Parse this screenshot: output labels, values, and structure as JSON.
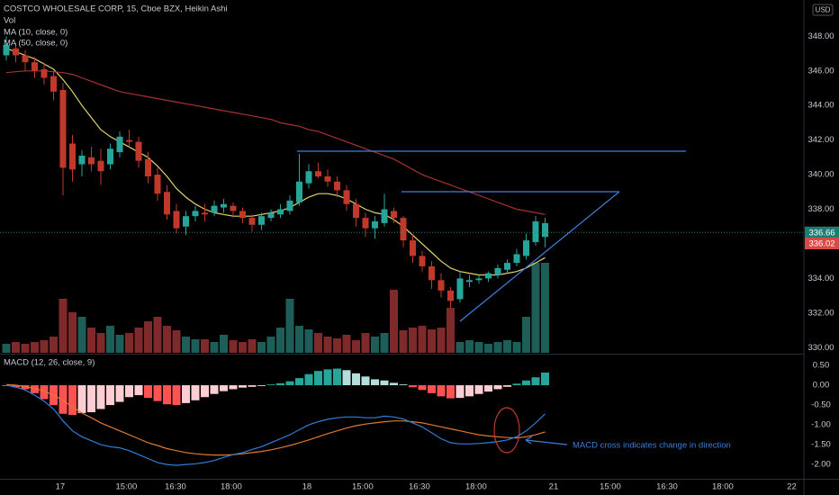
{
  "chart_data": [
    {
      "type": "candlestick",
      "title": "COSTCO WHOLESALE CORP, 15, Cboe BZX, Heikin Ashi",
      "currency": "USD",
      "open": [
        346.9,
        347.3,
        346.9,
        346.5,
        346.1,
        345.7,
        344.9,
        341.8,
        340.6,
        341.0,
        340.8,
        340.6,
        341.3,
        342.0,
        341.9,
        340.9,
        340.0,
        339.0,
        337.9,
        337.0,
        337.6,
        337.8,
        337.8,
        338.1,
        338.2,
        337.9,
        337.5,
        337.1,
        337.5,
        337.7,
        337.9,
        338.4,
        339.5,
        340.2,
        339.9,
        339.6,
        339.1,
        338.3,
        337.5,
        336.9,
        337.2,
        337.9,
        337.5,
        336.2,
        335.3,
        334.7,
        333.9,
        333.3,
        332.8,
        333.8,
        333.9,
        334.0,
        334.2,
        334.5,
        334.9,
        335.3,
        336.1,
        336.4
      ],
      "high": [
        348.0,
        347.6,
        347.2,
        346.8,
        346.5,
        346.0,
        345.3,
        342.3,
        341.4,
        341.6,
        341.5,
        341.8,
        342.5,
        342.6,
        342.2,
        341.3,
        340.4,
        339.4,
        338.3,
        337.9,
        338.2,
        338.3,
        338.5,
        338.6,
        338.4,
        338.1,
        337.7,
        337.8,
        338.0,
        338.3,
        338.8,
        341.2,
        340.6,
        340.7,
        340.3,
        339.9,
        339.4,
        338.6,
        337.8,
        337.6,
        338.9,
        338.1,
        337.6,
        336.5,
        335.6,
        335.0,
        334.3,
        333.5,
        334.4,
        334.2,
        334.2,
        334.4,
        334.8,
        335.1,
        335.7,
        336.6,
        337.6,
        337.5
      ],
      "low": [
        346.6,
        346.5,
        346.0,
        345.6,
        345.2,
        344.3,
        338.8,
        339.6,
        339.9,
        340.2,
        339.4,
        340.3,
        341.0,
        341.6,
        340.4,
        339.5,
        338.5,
        337.4,
        336.6,
        336.5,
        337.3,
        337.3,
        337.6,
        337.8,
        337.5,
        337.2,
        336.7,
        336.8,
        337.3,
        337.5,
        337.7,
        338.2,
        339.2,
        339.8,
        339.3,
        338.7,
        337.9,
        337.0,
        336.4,
        336.3,
        337.0,
        337.2,
        335.8,
        334.9,
        334.4,
        333.4,
        332.9,
        332.3,
        332.6,
        333.5,
        333.7,
        333.8,
        334.0,
        334.3,
        334.7,
        335.1,
        335.9,
        335.8
      ],
      "close": [
        347.5,
        346.9,
        346.5,
        346.0,
        345.6,
        344.8,
        340.4,
        340.3,
        341.1,
        340.6,
        340.2,
        341.5,
        342.2,
        341.9,
        340.8,
        339.9,
        338.9,
        337.7,
        336.9,
        337.6,
        337.9,
        337.7,
        338.2,
        338.3,
        337.9,
        337.5,
        337.1,
        337.6,
        337.8,
        338.0,
        338.5,
        339.6,
        340.2,
        339.9,
        339.6,
        339.1,
        338.3,
        337.5,
        336.9,
        337.3,
        338.0,
        337.5,
        336.2,
        335.3,
        334.7,
        333.9,
        333.3,
        332.7,
        334.0,
        333.9,
        334.0,
        334.3,
        334.6,
        334.9,
        335.4,
        336.2,
        337.3,
        337.2
      ],
      "up_color": "#26a69a",
      "down_color": "#c0392b",
      "series": [
        {
          "name": "MA (10, close, 0)",
          "color": "#e3d26b",
          "values": [
            347.3,
            347.1,
            346.9,
            346.7,
            346.4,
            346.1,
            345.5,
            344.8,
            344.0,
            343.3,
            342.6,
            342.2,
            341.9,
            341.6,
            341.3,
            341.0,
            340.5,
            339.9,
            339.2,
            338.7,
            338.3,
            338.0,
            337.8,
            337.7,
            337.6,
            337.6,
            337.6,
            337.7,
            337.8,
            337.9,
            338.1,
            338.4,
            338.7,
            338.9,
            338.9,
            338.8,
            338.6,
            338.3,
            338.0,
            337.8,
            337.7,
            337.4,
            337.0,
            336.5,
            336.0,
            335.5,
            335.0,
            334.6,
            334.4,
            334.3,
            334.2,
            334.2,
            334.2,
            334.3,
            334.4,
            334.6,
            334.9,
            335.2
          ]
        },
        {
          "name": "MA (50, close, 0)",
          "color": "#a8322f",
          "values": [
            345.9,
            345.95,
            346.0,
            346.0,
            346.0,
            345.95,
            345.9,
            345.8,
            345.6,
            345.4,
            345.2,
            345.0,
            344.8,
            344.7,
            344.6,
            344.5,
            344.4,
            344.3,
            344.2,
            344.1,
            344.0,
            343.9,
            343.8,
            343.7,
            343.6,
            343.5,
            343.4,
            343.3,
            343.2,
            343.0,
            342.9,
            342.8,
            342.6,
            342.5,
            342.3,
            342.1,
            341.9,
            341.7,
            341.5,
            341.3,
            341.1,
            340.9,
            340.6,
            340.3,
            340.0,
            339.8,
            339.6,
            339.4,
            339.2,
            339.0,
            338.8,
            338.6,
            338.4,
            338.2,
            338.0,
            337.9,
            337.8,
            337.7
          ]
        }
      ],
      "price_labels": [
        {
          "value": 336.66,
          "color": "#1e7d73"
        },
        {
          "value": 336.02,
          "color": "#d84a46"
        }
      ],
      "ylim": [
        329.7,
        350.1
      ],
      "yticks": [
        {
          "value": 348,
          "label": "348.00"
        },
        {
          "value": 346,
          "label": "346.00"
        },
        {
          "value": 344,
          "label": "344.00"
        },
        {
          "value": 342,
          "label": "342.00"
        },
        {
          "value": 340,
          "label": "340.00"
        },
        {
          "value": 338,
          "label": "338.00"
        },
        {
          "value": 334,
          "label": "334.00"
        },
        {
          "value": 332,
          "label": "332.00"
        },
        {
          "value": 330,
          "label": "330.00"
        }
      ],
      "xlim": [
        -0.667,
        84.38
      ],
      "xticks": [
        {
          "value": 5.7,
          "label": "17"
        },
        {
          "value": 12.7,
          "label": "15:00"
        },
        {
          "value": 17.9,
          "label": "16:30"
        },
        {
          "value": 23.8,
          "label": "18:00"
        },
        {
          "value": 31.8,
          "label": "18"
        },
        {
          "value": 37.7,
          "label": "15:00"
        },
        {
          "value": 43.7,
          "label": "16:30"
        },
        {
          "value": 49.7,
          "label": "18:00"
        },
        {
          "value": 57.9,
          "label": "21"
        },
        {
          "value": 63.9,
          "label": "15:00"
        },
        {
          "value": 69.9,
          "label": "16:30"
        },
        {
          "value": 75.8,
          "label": "18:00"
        },
        {
          "value": 83.1,
          "label": "22"
        }
      ]
    },
    {
      "type": "bar",
      "title": "Vol",
      "values": [
        10,
        12,
        10,
        12,
        14,
        18,
        60,
        45,
        40,
        28,
        22,
        30,
        20,
        22,
        28,
        35,
        40,
        30,
        25,
        18,
        15,
        15,
        12,
        20,
        14,
        12,
        15,
        12,
        18,
        28,
        60,
        30,
        26,
        22,
        18,
        16,
        20,
        14,
        22,
        18,
        22,
        70,
        25,
        28,
        30,
        26,
        28,
        50,
        12,
        14,
        12,
        10,
        12,
        14,
        12,
        40,
        100,
        100
      ],
      "up_color": "#1d5f58",
      "down_color": "#7e2a2a",
      "ylim": [
        0,
        110
      ]
    },
    {
      "type": "macd",
      "title": "MACD (12, 26, close, 9)",
      "histogram": [
        -0.02,
        -0.05,
        -0.1,
        -0.2,
        -0.35,
        -0.5,
        -0.72,
        -0.75,
        -0.7,
        -0.68,
        -0.6,
        -0.5,
        -0.42,
        -0.3,
        -0.25,
        -0.32,
        -0.4,
        -0.48,
        -0.5,
        -0.45,
        -0.38,
        -0.3,
        -0.22,
        -0.15,
        -0.1,
        -0.06,
        -0.04,
        -0.02,
        0.02,
        0.05,
        0.1,
        0.18,
        0.28,
        0.36,
        0.4,
        0.42,
        0.38,
        0.3,
        0.22,
        0.15,
        0.12,
        0.06,
        0.02,
        -0.05,
        -0.12,
        -0.2,
        -0.28,
        -0.33,
        -0.32,
        -0.28,
        -0.22,
        -0.16,
        -0.1,
        -0.04,
        0.04,
        0.12,
        0.2,
        0.32
      ],
      "macd": [
        0.0,
        -0.05,
        -0.12,
        -0.25,
        -0.4,
        -0.6,
        -0.9,
        -1.15,
        -1.3,
        -1.4,
        -1.5,
        -1.55,
        -1.58,
        -1.65,
        -1.75,
        -1.85,
        -1.95,
        -2.0,
        -2.02,
        -2.0,
        -1.98,
        -1.95,
        -1.9,
        -1.82,
        -1.75,
        -1.7,
        -1.62,
        -1.55,
        -1.45,
        -1.35,
        -1.25,
        -1.12,
        -1.0,
        -0.92,
        -0.86,
        -0.82,
        -0.8,
        -0.8,
        -0.82,
        -0.82,
        -0.78,
        -0.8,
        -0.85,
        -0.95,
        -1.05,
        -1.2,
        -1.35,
        -1.45,
        -1.48,
        -1.48,
        -1.47,
        -1.45,
        -1.42,
        -1.38,
        -1.3,
        -1.15,
        -0.95,
        -0.72
      ],
      "signal": [
        0.02,
        0.0,
        -0.03,
        -0.08,
        -0.15,
        -0.25,
        -0.38,
        -0.55,
        -0.7,
        -0.82,
        -0.95,
        -1.05,
        -1.15,
        -1.25,
        -1.35,
        -1.45,
        -1.52,
        -1.6,
        -1.65,
        -1.7,
        -1.73,
        -1.75,
        -1.76,
        -1.76,
        -1.75,
        -1.73,
        -1.7,
        -1.67,
        -1.63,
        -1.58,
        -1.52,
        -1.45,
        -1.38,
        -1.3,
        -1.22,
        -1.15,
        -1.08,
        -1.02,
        -0.98,
        -0.95,
        -0.92,
        -0.9,
        -0.9,
        -0.92,
        -0.95,
        -1.0,
        -1.05,
        -1.1,
        -1.15,
        -1.2,
        -1.25,
        -1.28,
        -1.3,
        -1.32,
        -1.33,
        -1.3,
        -1.25,
        -1.18
      ],
      "macd_color": "#2f7fd8",
      "signal_color": "#e0772e",
      "hist_colors": [
        "#26a69a",
        "#b2dfdb",
        "#ff5252",
        "#ffcdd2"
      ],
      "annotation": "MACD cross indicates change in direction",
      "ylim": [
        -2.36,
        0.75
      ],
      "yticks": [
        {
          "value": 0.5,
          "label": "0.50"
        },
        {
          "value": 0,
          "label": "0.00"
        },
        {
          "value": -0.5,
          "label": "-0.50"
        },
        {
          "value": -1,
          "label": "-1.00"
        },
        {
          "value": -1.5,
          "label": "-1.50"
        },
        {
          "value": -2,
          "label": "-2.00"
        }
      ]
    }
  ]
}
